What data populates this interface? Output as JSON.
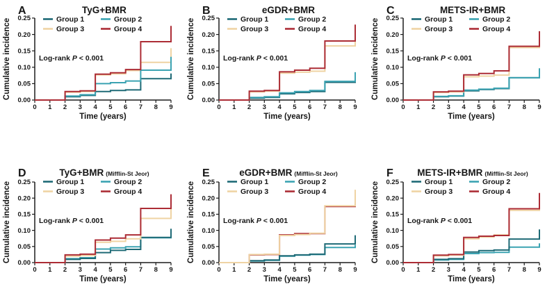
{
  "figure": {
    "background": "#ffffff",
    "text_color": "#161616",
    "axis_color": "#1a1a1a"
  },
  "groups": [
    {
      "id": "g1",
      "label": "Group 1",
      "color": "#1e6a76"
    },
    {
      "id": "g2",
      "label": "Group 2",
      "color": "#3ba3b2"
    },
    {
      "id": "g3",
      "label": "Group 3",
      "color": "#efd3a3"
    },
    {
      "id": "g4",
      "label": "Group 4",
      "color": "#ac2c35"
    }
  ],
  "logrank": {
    "pre": "Log-rank",
    "p": "P",
    "post": "< 0.001"
  },
  "axes": {
    "xlabel": "Time (years)",
    "ylabel": "Cumulative incidence",
    "xticks": [
      "0",
      "1",
      "2",
      "3",
      "4",
      "5",
      "6",
      "7",
      "8",
      "9"
    ],
    "yticks": [
      "0.00",
      "0.05",
      "0.10",
      "0.15",
      "0.20",
      "0.25"
    ],
    "xlim": [
      0,
      9
    ],
    "ylim": [
      0,
      0.25
    ],
    "grid": false,
    "legend_position": "top-inside"
  },
  "chart_data": [
    {
      "type": "line",
      "panel_label": "A",
      "title": "TyG+BMR",
      "subtitle": "",
      "annotation": "Log-rank P < 0.001",
      "xlabel": "Time (years)",
      "ylabel": "Cumulative incidence",
      "xlim": [
        0,
        9
      ],
      "ylim": [
        0,
        0.25
      ],
      "series": [
        {
          "name": "Group 3",
          "group": "g3",
          "steps": [
            [
              0,
              0
            ],
            [
              2,
              0.024
            ],
            [
              3,
              0.026
            ],
            [
              4,
              0.077
            ],
            [
              5,
              0.08
            ],
            [
              6,
              0.09
            ],
            [
              7,
              0.115
            ],
            [
              9,
              0.158
            ]
          ]
        },
        {
          "name": "Group 1",
          "group": "g1",
          "steps": [
            [
              0,
              0
            ],
            [
              2,
              0.01
            ],
            [
              3,
              0.014
            ],
            [
              4,
              0.026
            ],
            [
              5,
              0.029
            ],
            [
              6,
              0.031
            ],
            [
              7,
              0.065
            ],
            [
              9,
              0.081
            ]
          ]
        },
        {
          "name": "Group 2",
          "group": "g2",
          "steps": [
            [
              0,
              0
            ],
            [
              2,
              0.012
            ],
            [
              3,
              0.016
            ],
            [
              4,
              0.05
            ],
            [
              5,
              0.053
            ],
            [
              6,
              0.058
            ],
            [
              7,
              0.091
            ],
            [
              9,
              0.132
            ]
          ]
        },
        {
          "name": "Group 4",
          "group": "g4",
          "steps": [
            [
              0,
              0
            ],
            [
              2,
              0.026
            ],
            [
              3,
              0.028
            ],
            [
              4,
              0.079
            ],
            [
              5,
              0.083
            ],
            [
              6,
              0.093
            ],
            [
              7,
              0.178
            ],
            [
              9,
              0.226
            ]
          ]
        }
      ]
    },
    {
      "type": "line",
      "panel_label": "B",
      "title": "eGDR+BMR",
      "subtitle": "",
      "annotation": "Log-rank P < 0.001",
      "xlabel": "Time (years)",
      "ylabel": "Cumulative incidence",
      "xlim": [
        0,
        9
      ],
      "ylim": [
        0,
        0.25
      ],
      "series": [
        {
          "name": "Group 1",
          "group": "g1",
          "steps": [
            [
              0,
              0
            ],
            [
              2,
              0.006
            ],
            [
              3,
              0.008
            ],
            [
              4,
              0.019
            ],
            [
              5,
              0.023
            ],
            [
              6,
              0.026
            ],
            [
              7,
              0.054
            ],
            [
              9,
              0.06
            ]
          ]
        },
        {
          "name": "Group 2",
          "group": "g2",
          "steps": [
            [
              0,
              0
            ],
            [
              2,
              0.008
            ],
            [
              3,
              0.01
            ],
            [
              4,
              0.022
            ],
            [
              5,
              0.026
            ],
            [
              6,
              0.029
            ],
            [
              7,
              0.057
            ],
            [
              9,
              0.085
            ]
          ]
        },
        {
          "name": "Group 3",
          "group": "g3",
          "steps": [
            [
              0,
              0
            ],
            [
              2,
              0.025
            ],
            [
              3,
              0.027
            ],
            [
              4,
              0.082
            ],
            [
              5,
              0.085
            ],
            [
              6,
              0.088
            ],
            [
              7,
              0.165
            ],
            [
              9,
              0.212
            ]
          ]
        },
        {
          "name": "Group 4",
          "group": "g4",
          "steps": [
            [
              0,
              0
            ],
            [
              2,
              0.027
            ],
            [
              3,
              0.029
            ],
            [
              4,
              0.086
            ],
            [
              5,
              0.091
            ],
            [
              6,
              0.097
            ],
            [
              7,
              0.18
            ],
            [
              9,
              0.23
            ]
          ]
        }
      ]
    },
    {
      "type": "line",
      "panel_label": "C",
      "title": "METS-IR+BMR",
      "subtitle": "",
      "annotation": "Log-rank P < 0.001",
      "xlabel": "Time (years)",
      "ylabel": "Cumulative incidence",
      "xlim": [
        0,
        9
      ],
      "ylim": [
        0,
        0.25
      ],
      "series": [
        {
          "name": "Group 1",
          "group": "g1",
          "steps": [
            [
              0,
              0
            ],
            [
              2,
              0.01
            ],
            [
              3,
              0.012
            ],
            [
              4,
              0.028
            ],
            [
              5,
              0.032
            ],
            [
              6,
              0.035
            ],
            [
              7,
              0.068
            ],
            [
              9,
              0.072
            ]
          ]
        },
        {
          "name": "Group 2",
          "group": "g2",
          "steps": [
            [
              0,
              0
            ],
            [
              2,
              0.011
            ],
            [
              3,
              0.013
            ],
            [
              4,
              0.03
            ],
            [
              5,
              0.033
            ],
            [
              6,
              0.036
            ],
            [
              7,
              0.068
            ],
            [
              9,
              0.097
            ]
          ]
        },
        {
          "name": "Group 3",
          "group": "g3",
          "steps": [
            [
              0,
              0
            ],
            [
              2,
              0.023
            ],
            [
              3,
              0.025
            ],
            [
              4,
              0.071
            ],
            [
              5,
              0.073
            ],
            [
              6,
              0.076
            ],
            [
              7,
              0.16
            ],
            [
              9,
              0.206
            ]
          ]
        },
        {
          "name": "Group 4",
          "group": "g4",
          "steps": [
            [
              0,
              0
            ],
            [
              2,
              0.025
            ],
            [
              3,
              0.027
            ],
            [
              4,
              0.077
            ],
            [
              5,
              0.081
            ],
            [
              6,
              0.089
            ],
            [
              7,
              0.164
            ],
            [
              9,
              0.21
            ]
          ]
        }
      ]
    },
    {
      "type": "line",
      "panel_label": "D",
      "title": "TyG+BMR",
      "subtitle": "(Mifflin-St Jeor)",
      "annotation": "Log-rank P < 0.001",
      "xlabel": "Time (years)",
      "ylabel": "Cumulative incidence",
      "xlim": [
        0,
        9
      ],
      "ylim": [
        0,
        0.25
      ],
      "series": [
        {
          "name": "Group 2",
          "group": "g2",
          "steps": [
            [
              0,
              0
            ],
            [
              2,
              0.012
            ],
            [
              3,
              0.015
            ],
            [
              4,
              0.042
            ],
            [
              5,
              0.046
            ],
            [
              6,
              0.049
            ],
            [
              7,
              0.077
            ],
            [
              9,
              0.08
            ]
          ]
        },
        {
          "name": "Group 1",
          "group": "g1",
          "steps": [
            [
              0,
              0
            ],
            [
              2,
              0.01
            ],
            [
              3,
              0.013
            ],
            [
              4,
              0.031
            ],
            [
              5,
              0.038
            ],
            [
              6,
              0.041
            ],
            [
              7,
              0.078
            ],
            [
              9,
              0.105
            ]
          ]
        },
        {
          "name": "Group 3",
          "group": "g3",
          "steps": [
            [
              0,
              0
            ],
            [
              2,
              0.02
            ],
            [
              3,
              0.022
            ],
            [
              4,
              0.063
            ],
            [
              5,
              0.066
            ],
            [
              6,
              0.074
            ],
            [
              7,
              0.137
            ],
            [
              9,
              0.18
            ]
          ]
        },
        {
          "name": "Group 4",
          "group": "g4",
          "steps": [
            [
              0,
              0
            ],
            [
              2,
              0.024
            ],
            [
              3,
              0.026
            ],
            [
              4,
              0.07
            ],
            [
              5,
              0.076
            ],
            [
              6,
              0.086
            ],
            [
              7,
              0.168
            ],
            [
              9,
              0.212
            ]
          ]
        }
      ]
    },
    {
      "type": "line",
      "panel_label": "E",
      "title": "eGDR+BMR",
      "subtitle": "(Mifflin-St Jeor)",
      "annotation": "Log-rank P < 0.001",
      "xlabel": "Time (years)",
      "ylabel": "Cumulative incidence",
      "xlim": [
        0,
        9
      ],
      "ylim": [
        0,
        0.25
      ],
      "series": [
        {
          "name": "Group 2",
          "group": "g2",
          "steps": [
            [
              0,
              0
            ],
            [
              2,
              0.005
            ],
            [
              3,
              0.007
            ],
            [
              4,
              0.02
            ],
            [
              5,
              0.023
            ],
            [
              6,
              0.025
            ],
            [
              7,
              0.047
            ],
            [
              9,
              0.055
            ]
          ]
        },
        {
          "name": "Group 1",
          "group": "g1",
          "steps": [
            [
              0,
              0
            ],
            [
              2,
              0.006
            ],
            [
              3,
              0.008
            ],
            [
              4,
              0.021
            ],
            [
              5,
              0.024
            ],
            [
              6,
              0.026
            ],
            [
              7,
              0.058
            ],
            [
              9,
              0.085
            ]
          ]
        },
        {
          "name": "Group 4",
          "group": "g4",
          "steps": [
            [
              0,
              0
            ],
            [
              2,
              0.024
            ],
            [
              3,
              0.025
            ],
            [
              4,
              0.086
            ],
            [
              5,
              0.09
            ],
            [
              6,
              0.09
            ],
            [
              7,
              0.174
            ],
            [
              9,
              0.21
            ]
          ]
        },
        {
          "name": "Group 3",
          "group": "g3",
          "steps": [
            [
              0,
              0
            ],
            [
              2,
              0.025
            ],
            [
              3,
              0.026
            ],
            [
              4,
              0.084
            ],
            [
              5,
              0.087
            ],
            [
              6,
              0.091
            ],
            [
              7,
              0.176
            ],
            [
              9,
              0.226
            ]
          ]
        }
      ]
    },
    {
      "type": "line",
      "panel_label": "F",
      "title": "METS-IR+BMR",
      "subtitle": "(Mifflin-St Jeor)",
      "annotation": "Log-rank P < 0.001",
      "xlabel": "Time (years)",
      "ylabel": "Cumulative incidence",
      "xlim": [
        0,
        9
      ],
      "ylim": [
        0,
        0.25
      ],
      "series": [
        {
          "name": "Group 2",
          "group": "g2",
          "steps": [
            [
              0,
              0
            ],
            [
              2,
              0.008
            ],
            [
              3,
              0.01
            ],
            [
              4,
              0.028
            ],
            [
              5,
              0.031
            ],
            [
              6,
              0.032
            ],
            [
              7,
              0.048
            ],
            [
              9,
              0.06
            ]
          ]
        },
        {
          "name": "Group 1",
          "group": "g1",
          "steps": [
            [
              0,
              0
            ],
            [
              2,
              0.01
            ],
            [
              3,
              0.012
            ],
            [
              4,
              0.033
            ],
            [
              5,
              0.037
            ],
            [
              6,
              0.039
            ],
            [
              7,
              0.073
            ],
            [
              9,
              0.103
            ]
          ]
        },
        {
          "name": "Group 3",
          "group": "g3",
          "steps": [
            [
              0,
              0
            ],
            [
              2,
              0.021
            ],
            [
              3,
              0.023
            ],
            [
              4,
              0.074
            ],
            [
              5,
              0.079
            ],
            [
              6,
              0.086
            ],
            [
              7,
              0.162
            ],
            [
              9,
              0.208
            ]
          ]
        },
        {
          "name": "Group 4",
          "group": "g4",
          "steps": [
            [
              0,
              0
            ],
            [
              2,
              0.023
            ],
            [
              3,
              0.025
            ],
            [
              4,
              0.078
            ],
            [
              5,
              0.082
            ],
            [
              6,
              0.084
            ],
            [
              7,
              0.167
            ],
            [
              9,
              0.216
            ]
          ]
        }
      ]
    }
  ]
}
